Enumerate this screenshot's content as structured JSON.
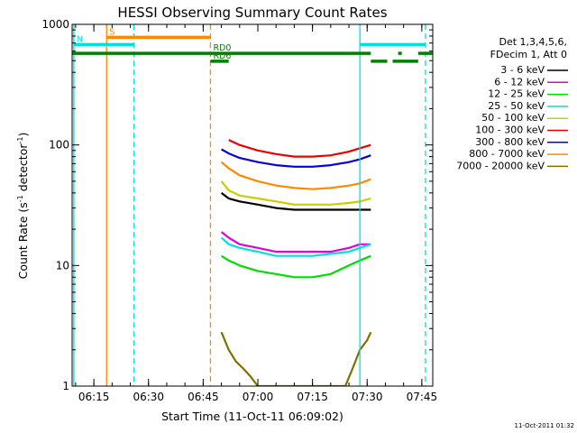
{
  "chart_data": {
    "type": "line",
    "title": "HESSI Observing Summary Count Rates",
    "xlabel": "Start Time (11-Oct-11 06:09:02)",
    "ylabel_parts": [
      "Count Rate (s",
      "-1",
      " detector",
      "-1",
      ")"
    ],
    "y_scale": "log",
    "ylim": [
      1,
      1000
    ],
    "y_ticks": [
      {
        "value": 1,
        "label": "1"
      },
      {
        "value": 10,
        "label": "10"
      },
      {
        "value": 100,
        "label": "100"
      },
      {
        "value": 1000,
        "label": "1000"
      }
    ],
    "xlim": [
      "06:09:02",
      "07:48:00"
    ],
    "x_ticks": [
      "06:15",
      "06:30",
      "06:45",
      "07:00",
      "07:15",
      "07:30",
      "07:45"
    ],
    "grid": false,
    "legend_header": [
      "Det 1,3,4,5,6,",
      "FDecim 1, Att 0"
    ],
    "legend_position": "right",
    "series": [
      {
        "name": "3 - 6 keV",
        "color": "#000000",
        "x": [
          "06:50",
          "06:52",
          "06:55",
          "07:00",
          "07:05",
          "07:10",
          "07:15",
          "07:20",
          "07:25",
          "07:28",
          "07:31"
        ],
        "values": [
          40,
          36,
          34,
          32,
          30,
          29,
          29,
          29,
          29,
          29,
          29
        ]
      },
      {
        "name": "6 - 12 keV",
        "color": "#e000e0",
        "x": [
          "06:50",
          "06:52",
          "06:55",
          "07:00",
          "07:05",
          "07:10",
          "07:15",
          "07:20",
          "07:25",
          "07:28",
          "07:31"
        ],
        "values": [
          19,
          17,
          15,
          14,
          13,
          13,
          13,
          13,
          14,
          15,
          15
        ]
      },
      {
        "name": "12 - 25 keV",
        "color": "#00dd00",
        "x": [
          "06:50",
          "06:52",
          "06:55",
          "07:00",
          "07:05",
          "07:10",
          "07:15",
          "07:20",
          "07:25",
          "07:28",
          "07:31"
        ],
        "values": [
          12,
          11,
          10,
          9,
          8.5,
          8,
          8,
          8.5,
          10,
          11,
          12
        ]
      },
      {
        "name": "25 - 50 keV",
        "color": "#00e0e0",
        "x": [
          "06:50",
          "06:52",
          "06:55",
          "07:00",
          "07:05",
          "07:10",
          "07:15",
          "07:20",
          "07:25",
          "07:28",
          "07:31"
        ],
        "values": [
          17,
          15,
          14,
          13,
          12,
          12,
          12,
          12.5,
          13,
          14,
          15
        ]
      },
      {
        "name": "50 - 100 keV",
        "color": "#cccc00",
        "x": [
          "06:50",
          "06:52",
          "06:55",
          "07:00",
          "07:05",
          "07:10",
          "07:15",
          "07:20",
          "07:25",
          "07:28",
          "07:31"
        ],
        "values": [
          50,
          42,
          38,
          36,
          34,
          32,
          32,
          32,
          33,
          34,
          36
        ]
      },
      {
        "name": "100 - 300 keV",
        "color": "#ee0000",
        "x": [
          "06:52",
          "06:55",
          "07:00",
          "07:05",
          "07:10",
          "07:15",
          "07:20",
          "07:25",
          "07:28",
          "07:31"
        ],
        "values": [
          110,
          100,
          90,
          84,
          80,
          80,
          82,
          88,
          94,
          100
        ]
      },
      {
        "name": "300 - 800 keV",
        "color": "#0000dd",
        "x": [
          "06:50",
          "06:52",
          "06:55",
          "07:00",
          "07:05",
          "07:10",
          "07:15",
          "07:20",
          "07:25",
          "07:28",
          "07:31"
        ],
        "values": [
          92,
          85,
          78,
          72,
          68,
          66,
          66,
          68,
          72,
          76,
          82
        ]
      },
      {
        "name": "800 - 7000 keV",
        "color": "#ff8800",
        "x": [
          "06:50",
          "06:52",
          "06:55",
          "07:00",
          "07:05",
          "07:10",
          "07:15",
          "07:20",
          "07:25",
          "07:28",
          "07:31"
        ],
        "values": [
          72,
          64,
          56,
          50,
          46,
          44,
          43,
          44,
          46,
          48,
          52
        ]
      },
      {
        "name": "7000 - 20000 keV",
        "color": "#807000",
        "x": [
          "06:50",
          "06:52",
          "06:54",
          "06:56",
          "06:58",
          "07:00",
          "07:24",
          "07:26",
          "07:28",
          "07:30",
          "07:31"
        ],
        "values": [
          2.8,
          2.0,
          1.6,
          1.4,
          1.2,
          1,
          1,
          1.4,
          2.0,
          2.4,
          2.8
        ]
      }
    ],
    "annotations": {
      "vertical_lines": [
        {
          "time": "06:09:30",
          "color": "#00e0e0",
          "style": "solid"
        },
        {
          "time": "06:18:30",
          "color": "#ff8800",
          "style": "solid"
        },
        {
          "time": "06:26:00",
          "color": "#00e0e0",
          "style": "dashed"
        },
        {
          "time": "06:47:00",
          "color": "#ff8800",
          "style": "dashed"
        },
        {
          "time": "07:28:00",
          "color": "#00e0e0",
          "style": "solid"
        },
        {
          "time": "07:46:00",
          "color": "#00e0e0",
          "style": "dashed"
        }
      ],
      "flags": [
        {
          "label": "S",
          "color": "#ff8800",
          "start": "06:18:30",
          "end": "06:47:00",
          "value": 780
        },
        {
          "label": "N",
          "color": "#00e0e0",
          "start": "06:09:30",
          "end": "06:26:00",
          "value": 680
        },
        {
          "label": "",
          "color": "#00e0e0",
          "start": "07:28:00",
          "end": "07:46:00",
          "value": 680
        },
        {
          "label": "RD0",
          "color": "#008000",
          "start": "06:47:00",
          "end": "07:31:00",
          "value": 575
        },
        {
          "label": "",
          "color": "#008000",
          "start": "06:09:02",
          "end": "06:47:00",
          "value": 575
        },
        {
          "label": "",
          "color": "#008000",
          "start": "07:38:30",
          "end": "07:39:30",
          "value": 575
        },
        {
          "label": "",
          "color": "#008000",
          "start": "07:44:00",
          "end": "07:48:00",
          "value": 575
        },
        {
          "label": "RD6",
          "color": "#008000",
          "start": "06:47:00",
          "end": "06:52:00",
          "value": 495
        },
        {
          "label": "",
          "color": "#008000",
          "start": "07:31:00",
          "end": "07:35:30",
          "value": 495
        },
        {
          "label": "",
          "color": "#008000",
          "start": "07:37:00",
          "end": "07:44:00",
          "value": 495
        }
      ]
    }
  },
  "footer": {
    "timestamp": "11-Oct-2011 01:32"
  }
}
